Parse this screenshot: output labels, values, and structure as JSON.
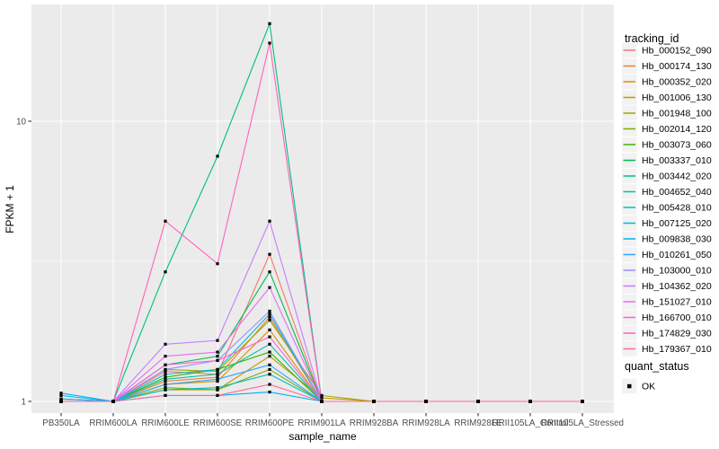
{
  "figure": {
    "bg": "#FFFFFF",
    "panel_bg": "#EBEBEB",
    "grid_color": "#FFFFFF",
    "tick_text_color": "#4D4D4D",
    "tick_mark_color": "#333333",
    "axis_title_color": "#000000",
    "legend_key_bg": "#F2F2F2"
  },
  "chart_data": {
    "type": "line",
    "title": "",
    "xlabel": "sample_name",
    "ylabel": "FPKM + 1",
    "y_scale": "log10",
    "ylim": [
      0.93,
      26
    ],
    "y_ticks": [
      1,
      10
    ],
    "y_tick_labels": [
      "1",
      "10"
    ],
    "y_minor_breaks": [
      3.162
    ],
    "grid": "on",
    "legend_position": "right",
    "legend_title": "tracking_id",
    "marker": {
      "shape": "square",
      "color": "#000000",
      "label": "OK"
    },
    "legend2_title": "quant_status",
    "legend2_items": [
      {
        "label": "OK",
        "shape": "square",
        "color": "#000000"
      }
    ],
    "categories": [
      "PB350LA",
      "RRIM600LA",
      "RRIM600LE",
      "RRIM600SE",
      "RRIM600PE",
      "RRIM901LA",
      "RRIM928BA",
      "RRIM928LA",
      "RRIM928LE",
      "RRII105LA_Control",
      "RRII105LA_Stressed"
    ],
    "series": [
      {
        "name": "Hb_000152_090",
        "color": "#F8766D",
        "values": [
          1,
          1,
          1.28,
          1.25,
          3.35,
          1,
          1,
          1,
          1,
          1,
          1
        ]
      },
      {
        "name": "Hb_000174_130",
        "color": "#EA8331",
        "values": [
          1,
          1,
          1.18,
          1.22,
          2.0,
          1,
          1,
          1,
          1,
          1,
          1
        ]
      },
      {
        "name": "Hb_000352_020",
        "color": "#D89000",
        "values": [
          1,
          1,
          1.15,
          1.18,
          1.8,
          1,
          1,
          1,
          1,
          1,
          1
        ]
      },
      {
        "name": "Hb_001006_130",
        "color": "#C09B00",
        "values": [
          1,
          1,
          1.1,
          1.1,
          1.45,
          1.03,
          1,
          1,
          1,
          1,
          1
        ]
      },
      {
        "name": "Hb_001948_100",
        "color": "#A3A500",
        "values": [
          1,
          1,
          1.3,
          1.28,
          1.95,
          1.05,
          1,
          1,
          1,
          1,
          1
        ]
      },
      {
        "name": "Hb_002014_120",
        "color": "#7CAE00",
        "values": [
          1,
          1,
          1.12,
          1.1,
          1.3,
          1,
          1,
          1,
          1,
          1,
          1
        ]
      },
      {
        "name": "Hb_003073_060",
        "color": "#39B600",
        "values": [
          1,
          1,
          1.22,
          1.3,
          1.5,
          1,
          1,
          1,
          1,
          1,
          1
        ]
      },
      {
        "name": "Hb_003337_010",
        "color": "#00BB4E",
        "values": [
          1,
          1,
          1.35,
          1.45,
          2.9,
          1,
          1,
          1,
          1,
          1,
          1
        ]
      },
      {
        "name": "Hb_003442_020",
        "color": "#00BF7D",
        "values": [
          1,
          1,
          2.9,
          7.5,
          22.3,
          1,
          1,
          1,
          1,
          1,
          1
        ]
      },
      {
        "name": "Hb_004652_040",
        "color": "#00C1A3",
        "values": [
          1.02,
          1,
          1.2,
          1.25,
          1.6,
          1,
          1,
          1,
          1,
          1,
          1
        ]
      },
      {
        "name": "Hb_005428_010",
        "color": "#00BFC4",
        "values": [
          1.02,
          1,
          1.1,
          1.12,
          1.25,
          1,
          1,
          1,
          1,
          1,
          1
        ]
      },
      {
        "name": "Hb_007125_020",
        "color": "#00BAE0",
        "values": [
          1.05,
          1,
          1.25,
          1.3,
          2.05,
          1,
          1,
          1,
          1,
          1,
          1
        ]
      },
      {
        "name": "Hb_009838_030",
        "color": "#00B0F6",
        "values": [
          1.07,
          1,
          1.05,
          1.05,
          1.08,
          1,
          1,
          1,
          1,
          1,
          1
        ]
      },
      {
        "name": "Hb_010261_050",
        "color": "#35A2FF",
        "values": [
          1.02,
          1,
          1.15,
          1.2,
          1.35,
          1,
          1,
          1,
          1,
          1,
          1
        ]
      },
      {
        "name": "Hb_103000_010",
        "color": "#9590FF",
        "values": [
          1,
          1,
          1.3,
          1.4,
          2.1,
          1,
          1,
          1,
          1,
          1,
          1
        ]
      },
      {
        "name": "Hb_104362_020",
        "color": "#C77CFF",
        "values": [
          1,
          1,
          1.6,
          1.65,
          4.4,
          1,
          1,
          1,
          1,
          1,
          1
        ]
      },
      {
        "name": "Hb_151027_010",
        "color": "#E76BF3",
        "values": [
          1,
          1,
          1.45,
          1.5,
          2.55,
          1,
          1,
          1,
          1,
          1,
          1
        ]
      },
      {
        "name": "Hb_166700_010",
        "color": "#FA62DB",
        "values": [
          1,
          1,
          1.35,
          1.4,
          1.7,
          1,
          1,
          1,
          1,
          1,
          1
        ]
      },
      {
        "name": "Hb_174829_030",
        "color": "#FF62BC",
        "values": [
          1,
          1,
          4.4,
          3.1,
          19.0,
          1,
          1,
          1,
          1,
          1,
          1
        ]
      },
      {
        "name": "Hb_179367_010",
        "color": "#FF6A98",
        "values": [
          1,
          1,
          1.05,
          1.05,
          1.15,
          1,
          1,
          1,
          1,
          1,
          1
        ]
      }
    ]
  }
}
